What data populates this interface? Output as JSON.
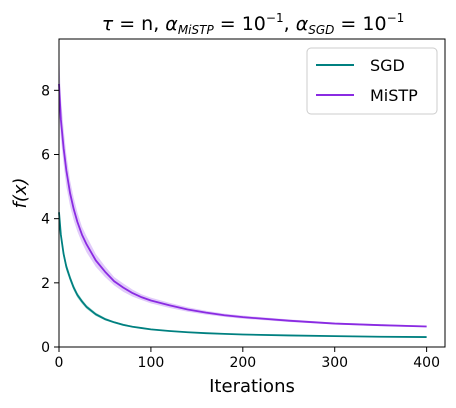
{
  "chart_data": {
    "type": "line",
    "title": {
      "tau": "τ",
      "tau_rhs": " = n, ",
      "alpha1": "α",
      "alpha1_sub": "MiSTP",
      "alpha1_rhs": " = 10",
      "alpha1_exp": "−1",
      "sep": ", ",
      "alpha2": "α",
      "alpha2_sub": "SGD",
      "alpha2_rhs": " = 10",
      "alpha2_exp": "−1"
    },
    "xlabel": "Iterations",
    "ylabel": "f(x)",
    "xlim": [
      0,
      420
    ],
    "ylim": [
      0,
      9.6
    ],
    "xticks": [
      0,
      100,
      200,
      300,
      400
    ],
    "yticks": [
      0,
      2,
      4,
      6,
      8
    ],
    "legend_position": "top-right",
    "grid": false,
    "series": [
      {
        "name": "SGD",
        "color": "#008080",
        "band_color": "#5fb8b0",
        "x": [
          0,
          2,
          5,
          8,
          12,
          16,
          20,
          25,
          30,
          40,
          50,
          60,
          70,
          80,
          90,
          100,
          120,
          140,
          160,
          180,
          200,
          250,
          300,
          350,
          400
        ],
        "y": [
          4.2,
          3.5,
          2.9,
          2.5,
          2.15,
          1.85,
          1.62,
          1.42,
          1.25,
          1.02,
          0.87,
          0.77,
          0.69,
          0.63,
          0.59,
          0.55,
          0.5,
          0.46,
          0.43,
          0.41,
          0.39,
          0.36,
          0.34,
          0.32,
          0.31
        ],
        "lower": [
          4.0,
          3.35,
          2.78,
          2.38,
          2.05,
          1.76,
          1.54,
          1.35,
          1.19,
          0.97,
          0.83,
          0.74,
          0.66,
          0.61,
          0.57,
          0.53,
          0.48,
          0.45,
          0.42,
          0.4,
          0.38,
          0.35,
          0.33,
          0.31,
          0.3
        ],
        "upper": [
          4.4,
          3.65,
          3.02,
          2.62,
          2.25,
          1.94,
          1.7,
          1.49,
          1.31,
          1.07,
          0.91,
          0.8,
          0.72,
          0.65,
          0.61,
          0.57,
          0.52,
          0.47,
          0.44,
          0.42,
          0.4,
          0.37,
          0.35,
          0.33,
          0.32
        ]
      },
      {
        "name": "MiSTP",
        "color": "#8a2be2",
        "band_color": "#c9a0f5",
        "x": [
          0,
          2,
          5,
          8,
          12,
          16,
          20,
          25,
          30,
          40,
          50,
          60,
          70,
          80,
          90,
          100,
          120,
          140,
          160,
          180,
          200,
          250,
          300,
          350,
          400
        ],
        "y": [
          8.2,
          7.1,
          6.2,
          5.5,
          4.8,
          4.3,
          3.9,
          3.5,
          3.2,
          2.7,
          2.35,
          2.05,
          1.85,
          1.68,
          1.55,
          1.45,
          1.3,
          1.17,
          1.07,
          0.99,
          0.93,
          0.82,
          0.73,
          0.68,
          0.64
        ],
        "lower": [
          7.4,
          6.5,
          5.7,
          5.0,
          4.4,
          3.95,
          3.6,
          3.25,
          2.95,
          2.5,
          2.18,
          1.92,
          1.72,
          1.57,
          1.46,
          1.36,
          1.22,
          1.1,
          1.01,
          0.94,
          0.88,
          0.78,
          0.7,
          0.65,
          0.62
        ],
        "upper": [
          9.2,
          7.8,
          6.8,
          6.0,
          5.2,
          4.65,
          4.2,
          3.75,
          3.45,
          2.9,
          2.52,
          2.18,
          1.98,
          1.79,
          1.64,
          1.54,
          1.38,
          1.24,
          1.13,
          1.04,
          0.98,
          0.86,
          0.76,
          0.71,
          0.67
        ]
      }
    ]
  }
}
